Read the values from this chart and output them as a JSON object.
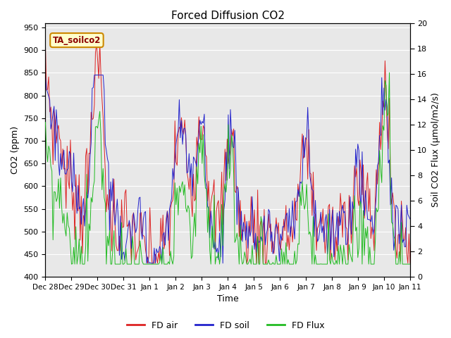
{
  "title": "Forced Diffusion CO2",
  "xlabel": "Time",
  "ylabel_left": "CO2 (ppm)",
  "ylabel_right": "Soil CO2 Flux (μmol/m2/s)",
  "annotation": "TA_soilco2",
  "ylim_left": [
    400,
    960
  ],
  "ylim_right": [
    0,
    20
  ],
  "yticks_left": [
    400,
    450,
    500,
    550,
    600,
    650,
    700,
    750,
    800,
    850,
    900,
    950
  ],
  "yticks_right": [
    0,
    2,
    4,
    6,
    8,
    10,
    12,
    14,
    16,
    18,
    20
  ],
  "color_air": "#dd2222",
  "color_soil": "#2222cc",
  "color_flux": "#22bb22",
  "legend_labels": [
    "FD air",
    "FD soil",
    "FD Flux"
  ],
  "x_tick_labels": [
    "Dec 28",
    "Dec 29",
    "Dec 30",
    "Dec 31",
    "Jan 1",
    "Jan 2",
    "Jan 3",
    "Jan 4",
    "Jan 5",
    "Jan 6",
    "Jan 7",
    "Jan 8",
    "Jan 9",
    "Jan 10",
    "Jan 11"
  ],
  "n_days": 14,
  "seed": 7
}
